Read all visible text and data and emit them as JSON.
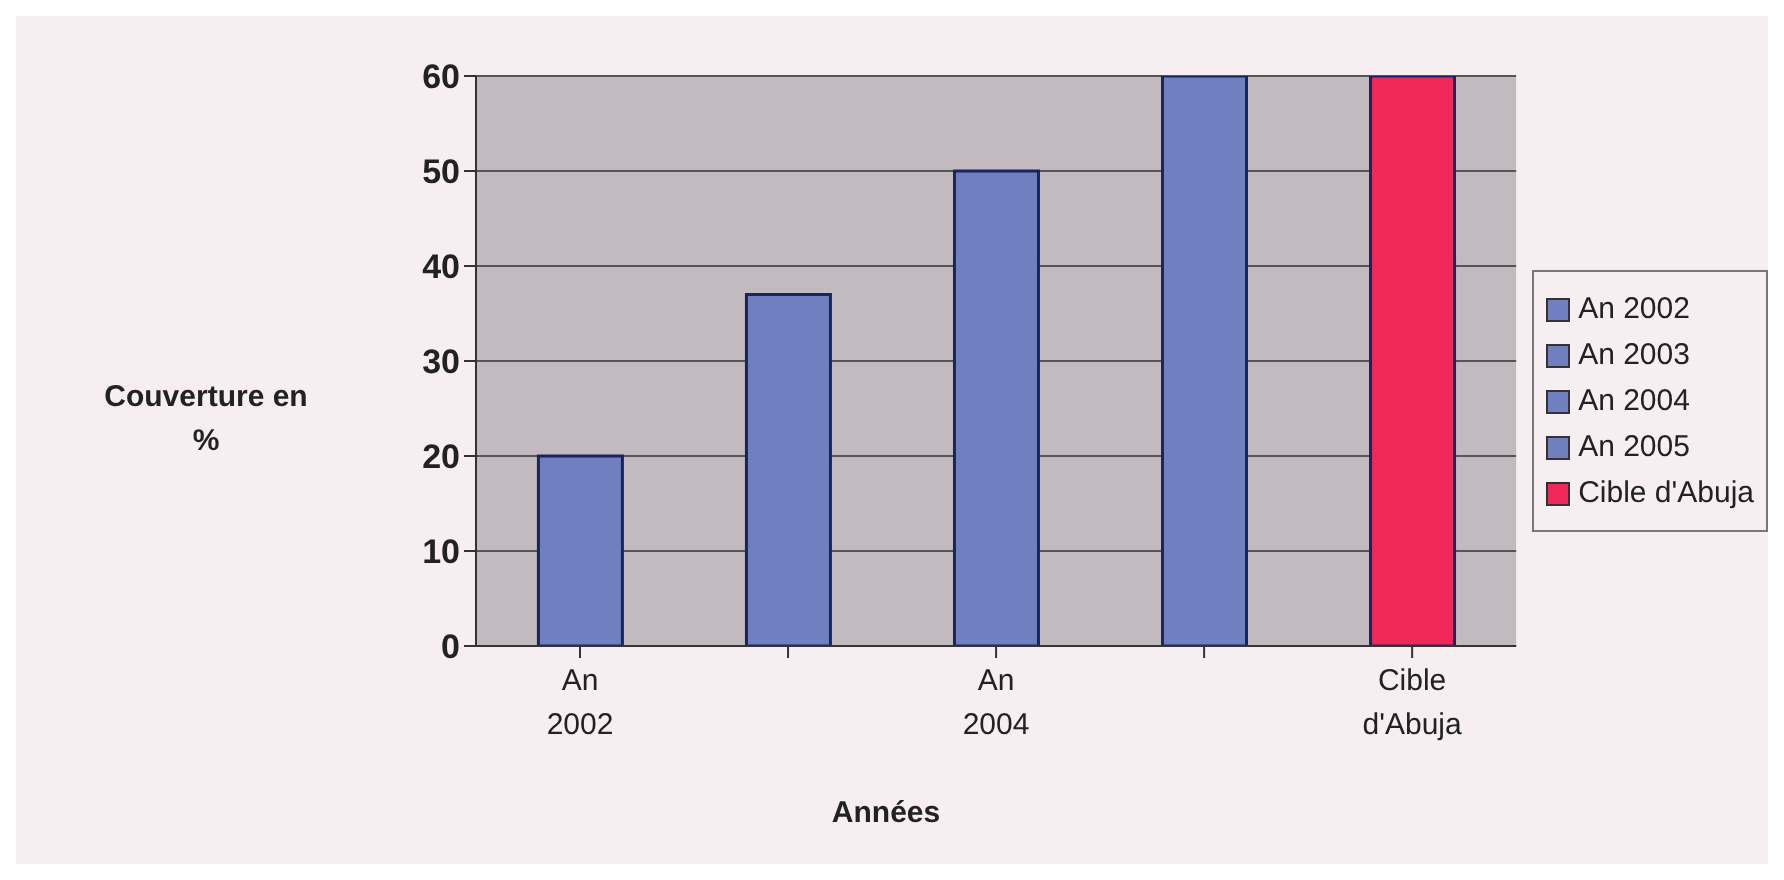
{
  "chart_data": {
    "type": "bar",
    "xlabel": "Années",
    "ylabel": "Couverture en %",
    "categories": [
      "An 2002",
      null,
      "An 2004",
      null,
      "Cible d'Abuja"
    ],
    "stacked": true,
    "series": [
      {
        "name": "An 2002",
        "color": "#6f7fbf",
        "values": [
          20,
          null,
          null,
          null,
          null
        ]
      },
      {
        "name": "An 2003",
        "color": "#6f7fbf",
        "values": [
          null,
          37,
          null,
          null,
          null
        ]
      },
      {
        "name": "An 2004",
        "color": "#6f7fbf",
        "values": [
          null,
          null,
          50,
          null,
          null
        ]
      },
      {
        "name": "An 2005",
        "color": "#6f7fbf",
        "values": [
          null,
          null,
          null,
          60,
          null
        ]
      },
      {
        "name": "Cible d'Abuja",
        "color": "#f0285a",
        "values": [
          null,
          null,
          null,
          null,
          60
        ]
      }
    ],
    "ylim": [
      0,
      60
    ],
    "yticks": [
      0,
      10,
      20,
      30,
      40,
      50,
      60
    ],
    "grid": "y",
    "legend": "right"
  }
}
